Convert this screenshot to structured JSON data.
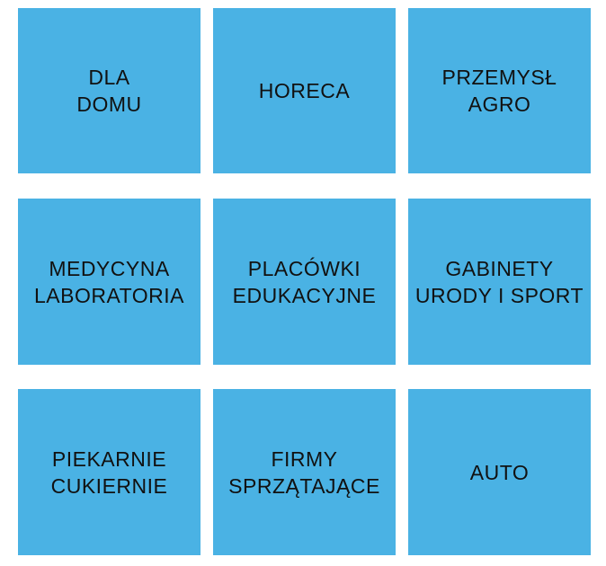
{
  "tile_color": "#4ab2e4",
  "tiles": [
    {
      "lines": [
        "DLA",
        "DOMU"
      ]
    },
    {
      "lines": [
        "HORECA"
      ]
    },
    {
      "lines": [
        "PRZEMYSŁ",
        "AGRO"
      ]
    },
    {
      "lines": [
        "MEDYCYNA",
        "LABORATORIA"
      ]
    },
    {
      "lines": [
        "PLACÓWKI",
        "EDUKACYJNE"
      ]
    },
    {
      "lines": [
        "GABINETY",
        "URODY I SPORT"
      ]
    },
    {
      "lines": [
        "PIEKARNIE",
        "CUKIERNIE"
      ]
    },
    {
      "lines": [
        "FIRMY",
        "SPRZĄTAJĄCE"
      ]
    },
    {
      "lines": [
        "AUTO"
      ]
    }
  ]
}
